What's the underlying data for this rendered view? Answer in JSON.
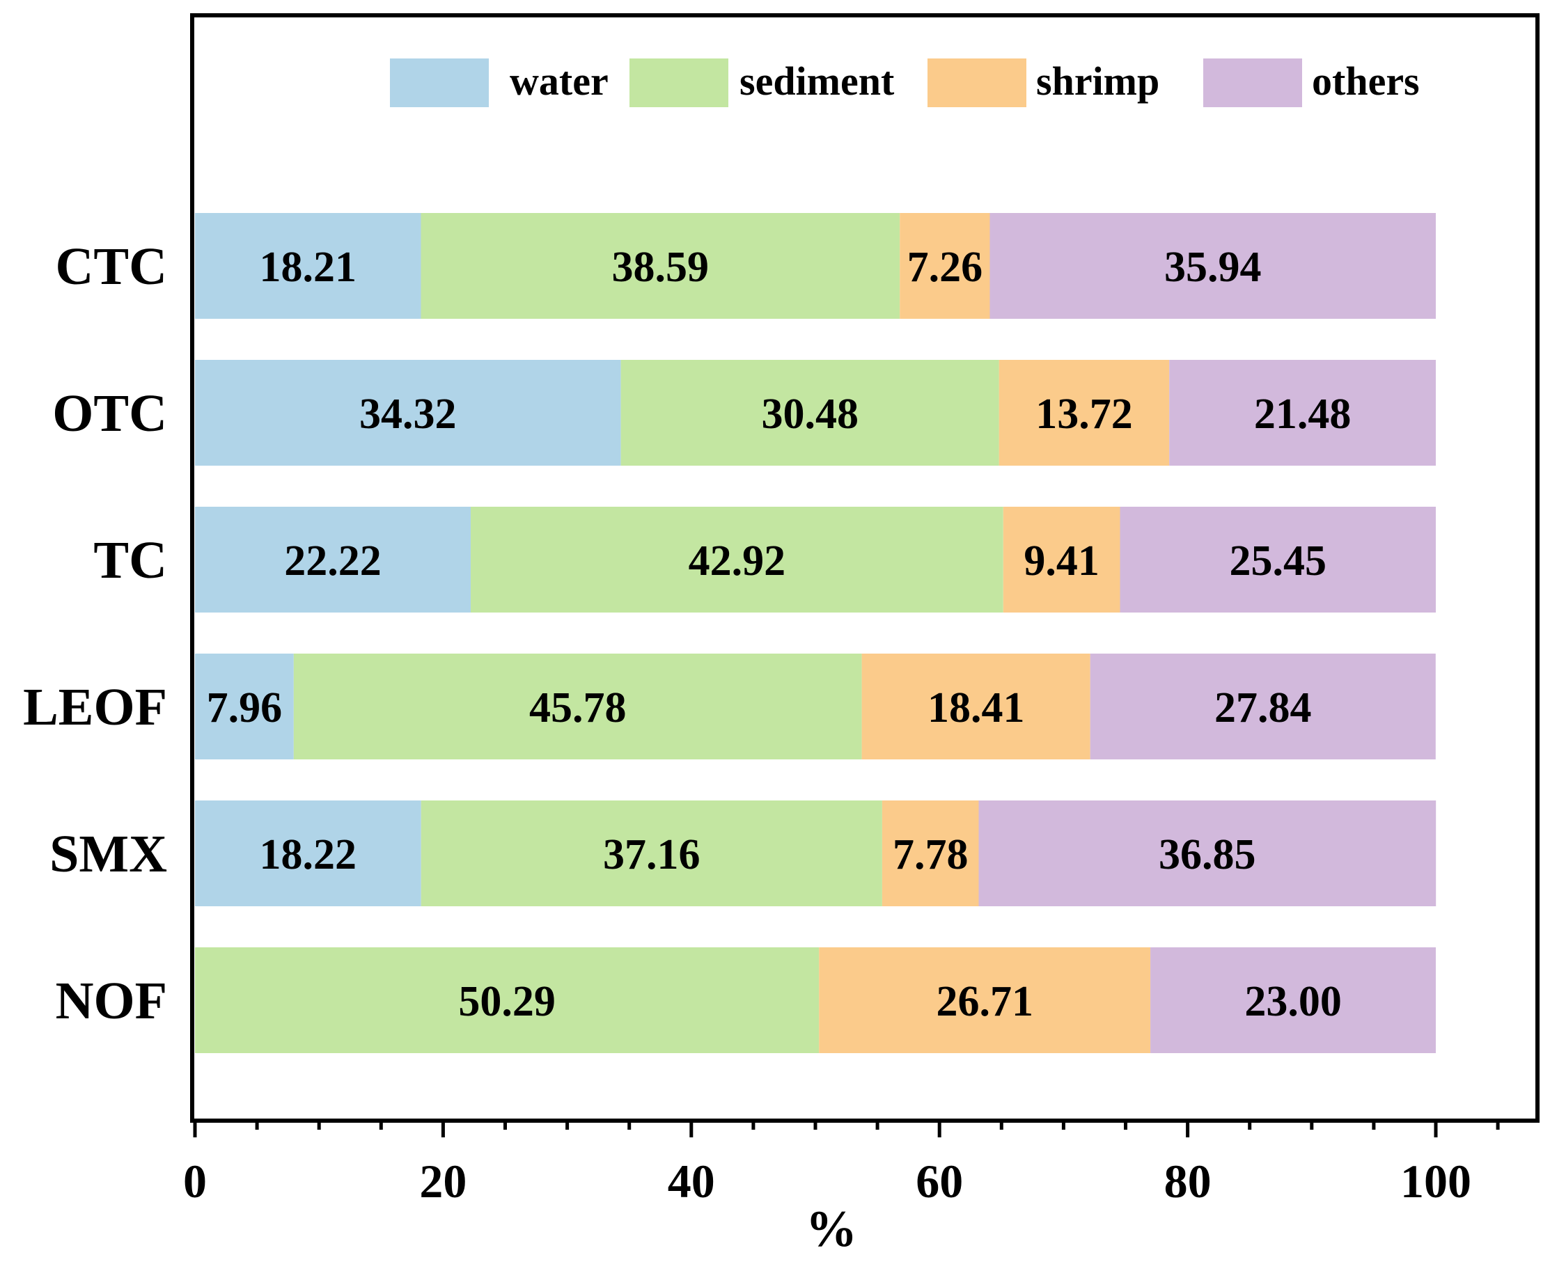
{
  "chart_data": {
    "type": "bar",
    "orientation": "horizontal",
    "stacked": true,
    "title": "",
    "xlabel": "%",
    "ylabel": "",
    "xlim": [
      0,
      108
    ],
    "xticks": [
      0,
      20,
      40,
      60,
      80,
      100
    ],
    "grid": false,
    "legend_position": "top",
    "categories": [
      "CTC",
      "OTC",
      "TC",
      "LEOF",
      "SMX",
      "NOF"
    ],
    "series": [
      {
        "name": "water",
        "color": "#b0d4e8",
        "values": [
          18.21,
          34.32,
          22.22,
          7.96,
          18.22,
          0
        ]
      },
      {
        "name": "sediment",
        "color": "#c3e6a1",
        "values": [
          38.59,
          30.48,
          42.92,
          45.78,
          37.16,
          50.29
        ]
      },
      {
        "name": "shrimp",
        "color": "#fbcb8b",
        "values": [
          7.26,
          13.72,
          9.41,
          18.41,
          7.78,
          26.71
        ]
      },
      {
        "name": "others",
        "color": "#d2b9dc",
        "values": [
          35.94,
          21.48,
          25.45,
          27.84,
          36.85,
          23.0
        ]
      }
    ],
    "data_labels": [
      [
        "18.21",
        "38.59",
        "7.26",
        "35.94"
      ],
      [
        "34.32",
        "30.48",
        "13.72",
        "21.48"
      ],
      [
        "22.22",
        "42.92",
        "9.41",
        "25.45"
      ],
      [
        "7.96",
        "45.78",
        "18.41",
        "27.84"
      ],
      [
        "18.22",
        "37.16",
        "7.78",
        "36.85"
      ],
      [
        "",
        "50.29",
        "26.71",
        "23.00"
      ]
    ]
  }
}
